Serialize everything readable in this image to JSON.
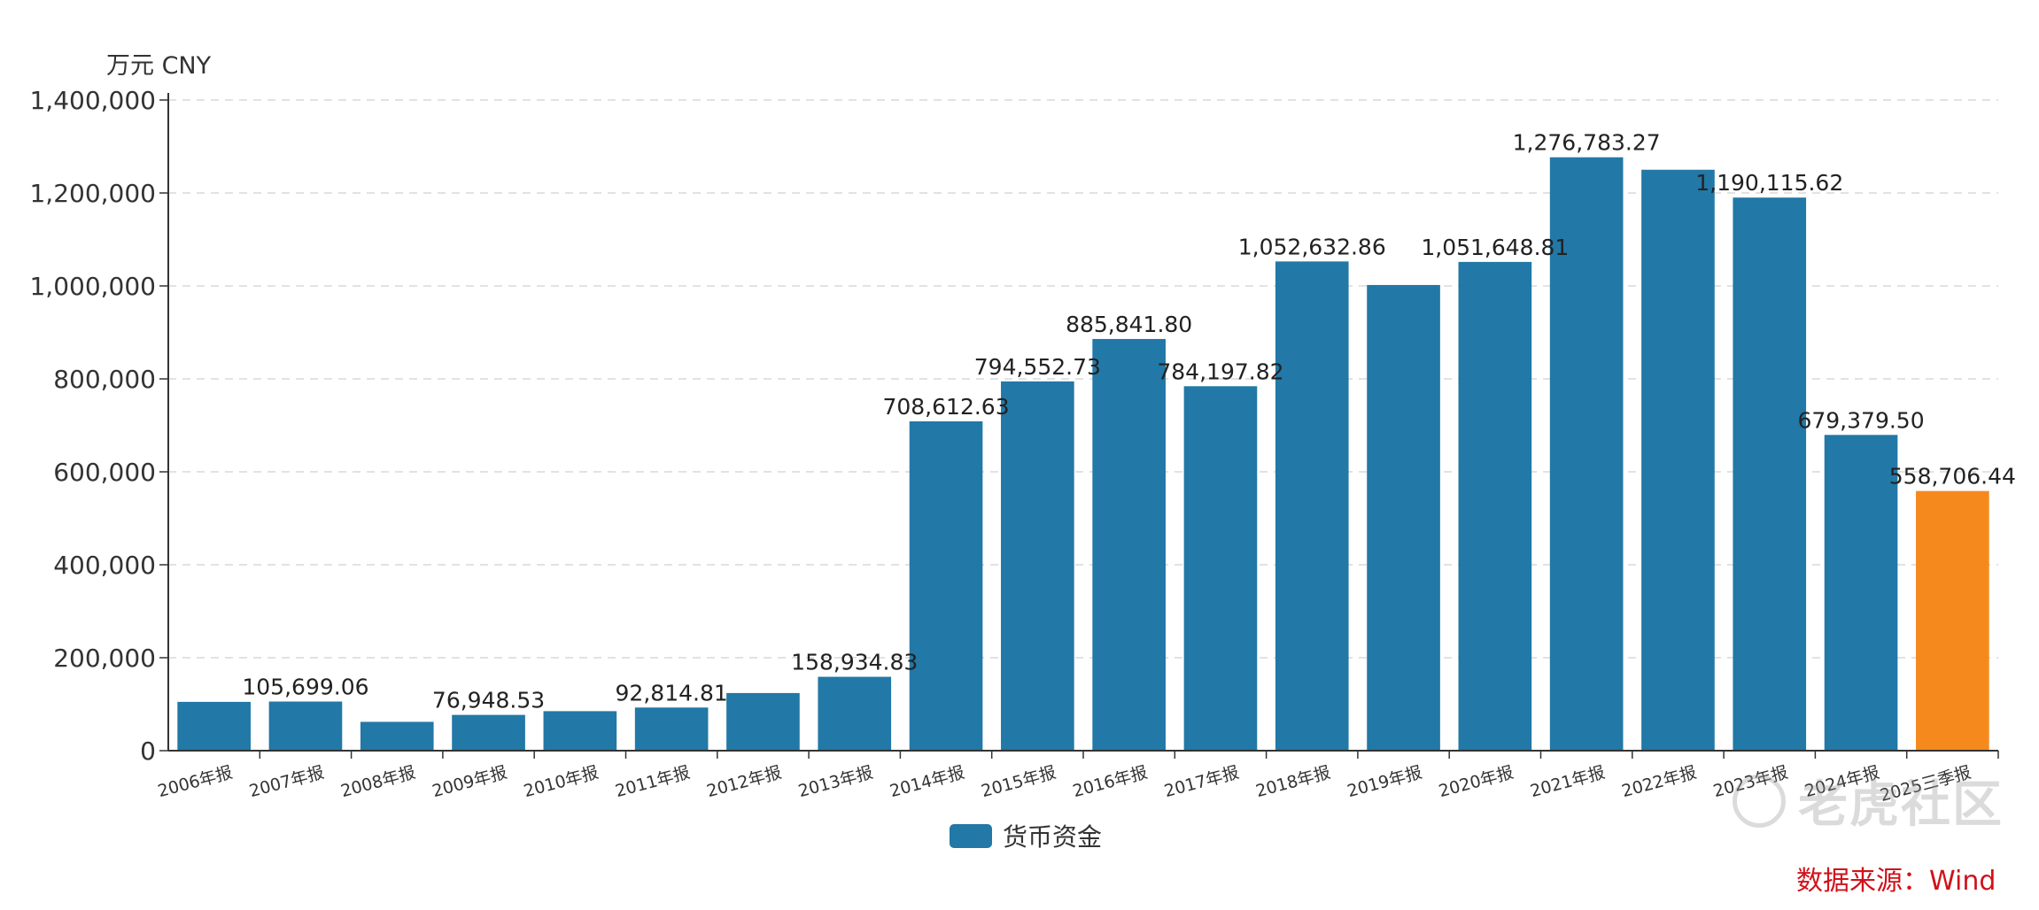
{
  "unit_label": "万元  CNY",
  "legend": {
    "label": "货币资金"
  },
  "source": "数据来源：Wind",
  "watermark": "老虎社区",
  "colors": {
    "primary": "#2278a6",
    "highlight": "#f6891e",
    "grid": "#d9d9d9",
    "axis": "#333333"
  },
  "chart_data": {
    "type": "bar",
    "categories": [
      "2006年报",
      "2007年报",
      "2008年报",
      "2009年报",
      "2010年报",
      "2011年报",
      "2012年报",
      "2013年报",
      "2014年报",
      "2015年报",
      "2016年报",
      "2017年报",
      "2018年报",
      "2019年报",
      "2020年报",
      "2021年报",
      "2022年报",
      "2023年报",
      "2024年报",
      "2025三季报"
    ],
    "series": [
      {
        "name": "货币资金",
        "values": [
          105000,
          105699.06,
          62000,
          76948.53,
          85000,
          92814.81,
          124000,
          158934.83,
          708612.63,
          794552.73,
          885841.8,
          784197.82,
          1052632.86,
          1002000,
          1051648.81,
          1276783.27,
          1250000,
          1190115.62,
          679379.5,
          558706.44
        ]
      }
    ],
    "data_labels": [
      "",
      "105,699.06",
      "",
      "76,948.53",
      "",
      "92,814.81",
      "",
      "158,934.83",
      "708,612.63",
      "794,552.73",
      "885,841.80",
      "784,197.82",
      "1,052,632.86",
      "",
      "1,051,648.81",
      "1,276,783.27",
      "",
      "1,190,115.62",
      "679,379.50",
      "558,706.44"
    ],
    "highlight_index": 19,
    "ylim": [
      0,
      1400000
    ],
    "yticks": [
      0,
      200000,
      400000,
      600000,
      800000,
      1000000,
      1200000,
      1400000
    ],
    "ytick_labels": [
      "0",
      "200,000",
      "400,000",
      "600,000",
      "800,000",
      "1,000,000",
      "1,200,000",
      "1,400,000"
    ],
    "grid": true,
    "legend_position": "bottom-center"
  }
}
